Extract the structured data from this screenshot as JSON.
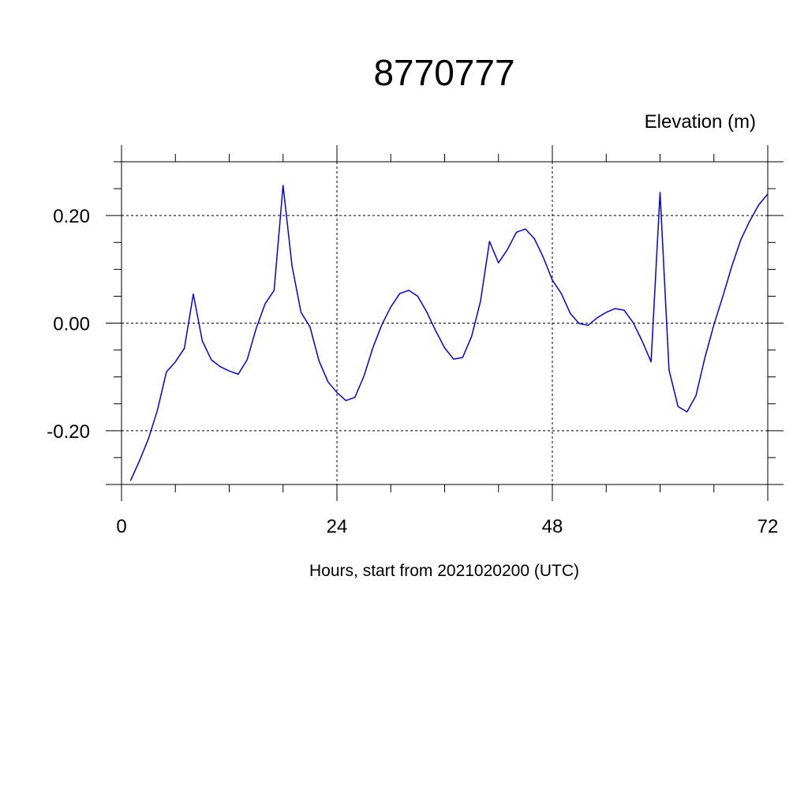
{
  "chart_data": {
    "type": "line",
    "title": "8770777",
    "unit_label": "Elevation (m)",
    "xlabel": "Hours, start from 2021020200 (UTC)",
    "ylabel": "",
    "xlim": [
      0,
      72
    ],
    "ylim": [
      -0.3,
      0.3
    ],
    "x_major_ticks": [
      0,
      24,
      48,
      72
    ],
    "x_tick_labels": [
      "0",
      "24",
      "48",
      "72"
    ],
    "x_minor_step": 6,
    "y_major_ticks": [
      -0.2,
      0.0,
      0.2
    ],
    "y_tick_labels": [
      "-0.20",
      "0.00",
      "0.20"
    ],
    "y_minor_step": 0.05,
    "grid": true,
    "grid_style": "dashed",
    "line_color": "#0000ee",
    "series": [
      {
        "x": [
          1,
          2,
          3,
          4,
          5,
          6,
          7,
          8,
          9,
          10,
          11,
          12,
          13,
          14,
          15,
          16,
          17,
          18,
          19,
          20,
          21,
          22,
          23,
          24,
          25,
          26,
          27,
          28,
          29,
          30,
          31,
          32,
          33,
          34,
          35,
          36,
          37,
          38,
          39,
          40,
          41,
          42,
          43,
          44,
          45,
          46,
          47,
          48,
          49,
          50,
          51,
          52,
          53,
          54,
          55,
          56,
          57,
          58,
          59,
          60,
          61,
          62,
          63,
          64,
          65,
          66,
          67,
          68,
          69,
          70,
          71,
          72
        ],
        "values": [
          -0.293,
          -0.256,
          -0.215,
          -0.162,
          -0.091,
          -0.072,
          -0.047,
          0.054,
          -0.033,
          -0.068,
          -0.081,
          -0.089,
          -0.095,
          -0.068,
          -0.01,
          0.036,
          0.061,
          0.256,
          0.106,
          0.02,
          -0.007,
          -0.07,
          -0.109,
          -0.129,
          -0.144,
          -0.138,
          -0.099,
          -0.046,
          -0.003,
          0.03,
          0.055,
          0.061,
          0.05,
          0.021,
          -0.014,
          -0.046,
          -0.067,
          -0.064,
          -0.025,
          0.041,
          0.152,
          0.112,
          0.137,
          0.169,
          0.175,
          0.157,
          0.122,
          0.08,
          0.055,
          0.018,
          -0.001,
          -0.004,
          0.01,
          0.02,
          0.027,
          0.024,
          0.001,
          -0.033,
          -0.072,
          0.243,
          -0.087,
          -0.155,
          -0.165,
          -0.135,
          -0.064,
          -0.003,
          0.05,
          0.106,
          0.155,
          0.19,
          0.22,
          0.24
        ]
      }
    ]
  }
}
